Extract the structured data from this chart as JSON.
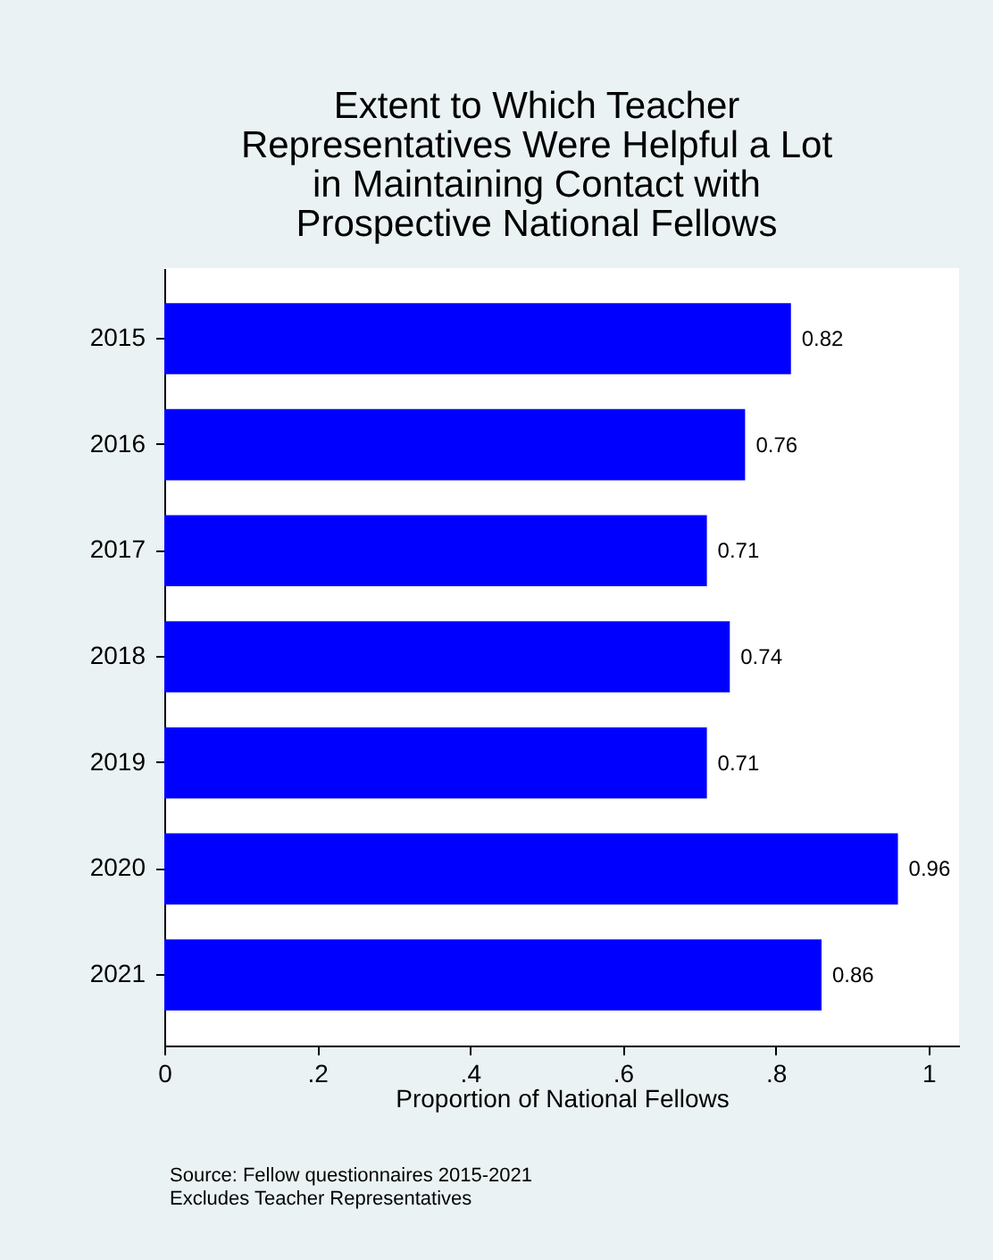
{
  "chart_data": {
    "type": "bar",
    "orientation": "horizontal",
    "title": "Extent to Which Teacher Representatives Were Helpful a Lot in Maintaining Contact with Prospective National Fellows",
    "xlabel": "Proportion of National Fellows",
    "categories": [
      "2015",
      "2016",
      "2017",
      "2018",
      "2019",
      "2020",
      "2021"
    ],
    "values": [
      0.82,
      0.76,
      0.71,
      0.74,
      0.71,
      0.96,
      0.86
    ],
    "color": "#0000ff",
    "xlim": [
      0,
      1.04
    ],
    "xticks": [
      0,
      {
        "value": 0.2,
        "label": ".2"
      },
      {
        "value": 0.4,
        "label": ".4"
      },
      {
        "value": 0.6,
        "label": ".6"
      },
      {
        "value": 0.8,
        "label": ".8"
      },
      1
    ],
    "data_labels": true,
    "grid": false,
    "annotations": [
      "Source: Fellow questionnaires 2015-2021",
      "Excludes Teacher Representatives"
    ]
  }
}
